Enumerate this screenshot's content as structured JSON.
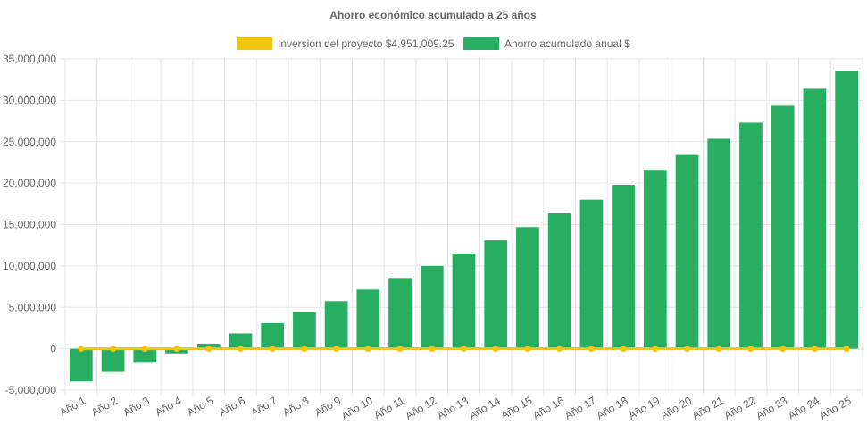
{
  "chart_data": {
    "type": "bar",
    "title": "Ahorro económico acumulado a 25 años",
    "categories": [
      "Año 1",
      "Año 2",
      "Año 3",
      "Año 4",
      "Año 5",
      "Año 6",
      "Año 7",
      "Año 8",
      "Año 9",
      "Año 10",
      "Año 11",
      "Año 12",
      "Año 13",
      "Año 14",
      "Año 15",
      "Año 16",
      "Año 17",
      "Año 18",
      "Año 19",
      "Año 20",
      "Año 21",
      "Año 22",
      "Año 23",
      "Año 24",
      "Año 25"
    ],
    "series": [
      {
        "name": "Inversión del proyecto $4,951,009.25",
        "type": "line",
        "color": "#f1c40f",
        "values": [
          0,
          0,
          0,
          0,
          0,
          0,
          0,
          0,
          0,
          0,
          0,
          0,
          0,
          0,
          0,
          0,
          0,
          0,
          0,
          0,
          0,
          0,
          0,
          0,
          0
        ]
      },
      {
        "name": "Ahorro acumulado anual $",
        "type": "bar",
        "color": "#27ae60",
        "values": [
          -3950000,
          -2800000,
          -1700000,
          -550000,
          600000,
          1850000,
          3100000,
          4400000,
          5750000,
          7150000,
          8550000,
          10000000,
          11500000,
          13100000,
          14700000,
          16350000,
          18000000,
          19800000,
          21600000,
          23400000,
          25350000,
          27300000,
          29350000,
          31400000,
          33600000
        ]
      }
    ],
    "ylim": [
      -5000000,
      35000000
    ],
    "yticks": [
      "35,000,000",
      "30,000,000",
      "25,000,000",
      "20,000,000",
      "15,000,000",
      "10,000,000",
      "5,000,000",
      "0",
      "-5,000,000"
    ],
    "ytick_values": [
      35000000,
      30000000,
      25000000,
      20000000,
      15000000,
      10000000,
      5000000,
      0,
      -5000000
    ],
    "grid": true,
    "legend_position": "top"
  }
}
